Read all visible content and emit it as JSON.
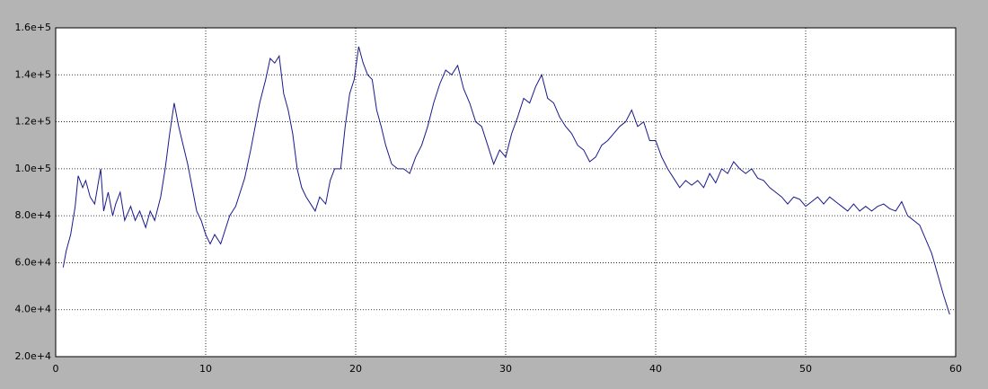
{
  "chart_data": {
    "type": "line",
    "x": [
      0.5,
      0.7,
      1.0,
      1.3,
      1.5,
      1.8,
      2.0,
      2.3,
      2.6,
      3.0,
      3.2,
      3.5,
      3.8,
      4.0,
      4.3,
      4.6,
      5.0,
      5.3,
      5.6,
      6.0,
      6.3,
      6.6,
      7.0,
      7.3,
      7.6,
      7.9,
      8.2,
      8.5,
      8.8,
      9.1,
      9.4,
      9.7,
      10.0,
      10.3,
      10.6,
      11.0,
      11.3,
      11.6,
      12.0,
      12.3,
      12.6,
      13.0,
      13.3,
      13.6,
      14.0,
      14.3,
      14.6,
      14.9,
      15.2,
      15.5,
      15.8,
      16.1,
      16.4,
      16.7,
      17.0,
      17.3,
      17.6,
      18.0,
      18.3,
      18.6,
      19.0,
      19.3,
      19.6,
      19.9,
      20.2,
      20.5,
      20.8,
      21.1,
      21.4,
      21.7,
      22.0,
      22.4,
      22.8,
      23.2,
      23.6,
      24.0,
      24.4,
      24.8,
      25.2,
      25.6,
      26.0,
      26.4,
      26.8,
      27.2,
      27.6,
      28.0,
      28.4,
      28.8,
      29.2,
      29.6,
      30.0,
      30.4,
      30.8,
      31.2,
      31.6,
      32.0,
      32.4,
      32.8,
      33.2,
      33.6,
      34.0,
      34.4,
      34.8,
      35.2,
      35.6,
      36.0,
      36.4,
      36.8,
      37.2,
      37.6,
      38.0,
      38.4,
      38.8,
      39.2,
      39.6,
      40.0,
      40.4,
      40.8,
      41.2,
      41.6,
      42.0,
      42.4,
      42.8,
      43.2,
      43.6,
      44.0,
      44.4,
      44.8,
      45.2,
      45.6,
      46.0,
      46.4,
      46.8,
      47.2,
      47.6,
      48.0,
      48.4,
      48.8,
      49.2,
      49.6,
      50.0,
      50.4,
      50.8,
      51.2,
      51.6,
      52.0,
      52.4,
      52.8,
      53.2,
      53.6,
      54.0,
      54.4,
      54.8,
      55.2,
      55.6,
      56.0,
      56.4,
      56.8,
      57.2,
      57.6,
      58.0,
      58.4,
      58.8,
      59.2,
      59.6
    ],
    "series": [
      {
        "color": "#1a1a8c",
        "values": [
          58000,
          65000,
          72000,
          84000,
          97000,
          92000,
          95000,
          88000,
          85000,
          100000,
          82000,
          90000,
          80000,
          85000,
          90000,
          78000,
          84000,
          78000,
          82000,
          75000,
          82000,
          78000,
          88000,
          100000,
          115000,
          128000,
          118000,
          110000,
          102000,
          92000,
          82000,
          78000,
          72000,
          68000,
          72000,
          68000,
          74000,
          80000,
          84000,
          90000,
          96000,
          108000,
          118000,
          128000,
          138000,
          147000,
          145000,
          148000,
          132000,
          125000,
          115000,
          100000,
          92000,
          88000,
          85000,
          82000,
          88000,
          85000,
          95000,
          100000,
          100000,
          118000,
          132000,
          138000,
          152000,
          145000,
          140000,
          138000,
          125000,
          118000,
          110000,
          102000,
          100000,
          100000,
          98000,
          105000,
          110000,
          118000,
          128000,
          136000,
          142000,
          140000,
          144000,
          134000,
          128000,
          120000,
          118000,
          110000,
          102000,
          108000,
          105000,
          115000,
          122000,
          130000,
          128000,
          135000,
          140000,
          130000,
          128000,
          122000,
          118000,
          115000,
          110000,
          108000,
          103000,
          105000,
          110000,
          112000,
          115000,
          118000,
          120000,
          125000,
          118000,
          120000,
          112000,
          112000,
          105000,
          100000,
          96000,
          92000,
          95000,
          93000,
          95000,
          92000,
          98000,
          94000,
          100000,
          98000,
          103000,
          100000,
          98000,
          100000,
          96000,
          95000,
          92000,
          90000,
          88000,
          85000,
          88000,
          87000,
          84000,
          86000,
          88000,
          85000,
          88000,
          86000,
          84000,
          82000,
          85000,
          82000,
          84000,
          82000,
          84000,
          85000,
          83000,
          82000,
          86000,
          80000,
          78000,
          76000,
          70000,
          64000,
          55000,
          46000,
          38000
        ]
      }
    ],
    "xlim": [
      0,
      60
    ],
    "xticks": [
      0,
      10,
      20,
      30,
      40,
      50,
      60
    ],
    "ylim": [
      20000,
      160000
    ],
    "yticks": [
      {
        "value": 20000,
        "label": "2.0e+4"
      },
      {
        "value": 40000,
        "label": "4.0e+4"
      },
      {
        "value": 60000,
        "label": "6.0e+4"
      },
      {
        "value": 80000,
        "label": "8.0e+4"
      },
      {
        "value": 100000,
        "label": "1.0e+5"
      },
      {
        "value": 120000,
        "label": "1.2e+5"
      },
      {
        "value": 140000,
        "label": "1.4e+5"
      },
      {
        "value": 160000,
        "label": "1.6e+5"
      }
    ],
    "grid": true
  }
}
